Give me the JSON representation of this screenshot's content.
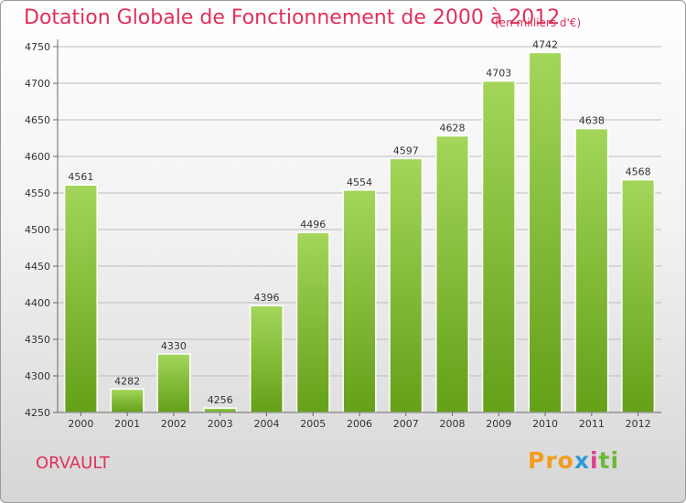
{
  "title": "Dotation Globale de Fonctionnement de 2000 à 2012",
  "subtitle": "(en milliers d'€)",
  "commune": "ORVAULT",
  "logo": {
    "p1": "Pro",
    "p2": "x",
    "p3": "i",
    "p4": "ti"
  },
  "colors": {
    "title": "#e0305a",
    "bar_light": "#a3d65a",
    "bar_dark": "#64a018",
    "grid": "#bdbdbd"
  },
  "chart_data": {
    "type": "bar",
    "title": "Dotation Globale de Fonctionnement de 2000 à 2012",
    "subtitle": "(en milliers d'€)",
    "xlabel": "",
    "ylabel": "",
    "categories": [
      "2000",
      "2001",
      "2002",
      "2003",
      "2004",
      "2005",
      "2006",
      "2007",
      "2008",
      "2009",
      "2010",
      "2011",
      "2012"
    ],
    "values": [
      4561,
      4282,
      4330,
      4256,
      4396,
      4496,
      4554,
      4597,
      4628,
      4703,
      4742,
      4638,
      4568
    ],
    "ylim": [
      4250,
      4750
    ],
    "yticks": [
      4250,
      4300,
      4350,
      4400,
      4450,
      4500,
      4550,
      4600,
      4650,
      4700,
      4750
    ],
    "grid": true,
    "data_labels": true
  }
}
